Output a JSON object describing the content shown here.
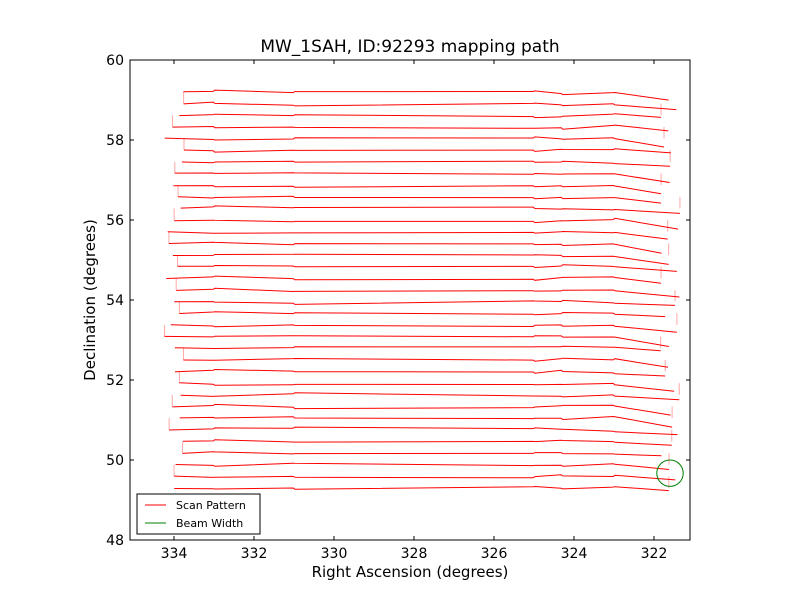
{
  "chart_data": {
    "type": "line",
    "title": "MW_1SAH, ID:92293 mapping path",
    "xlabel": "Right Ascension (degrees)",
    "ylabel": "Declination (degrees)",
    "xlim": [
      335.1,
      321.1
    ],
    "ylim": [
      48,
      60
    ],
    "x_inverted": true,
    "xticks": [
      334,
      332,
      330,
      328,
      326,
      324,
      322
    ],
    "yticks": [
      48,
      50,
      52,
      54,
      56,
      58,
      60
    ],
    "grid": false,
    "legend_position": "lower-left",
    "scan_rows": {
      "count": 35,
      "dec_start": 49.3,
      "dec_end": 59.2,
      "ra_east": 334.0,
      "ra_west": 321.6
    },
    "series": [
      {
        "name": "Scan Pattern",
        "color": "#ff0000"
      },
      {
        "name": "Beam Width",
        "color": "#008000",
        "center": [
          321.6,
          49.67
        ],
        "radius_deg": 0.33
      }
    ]
  }
}
